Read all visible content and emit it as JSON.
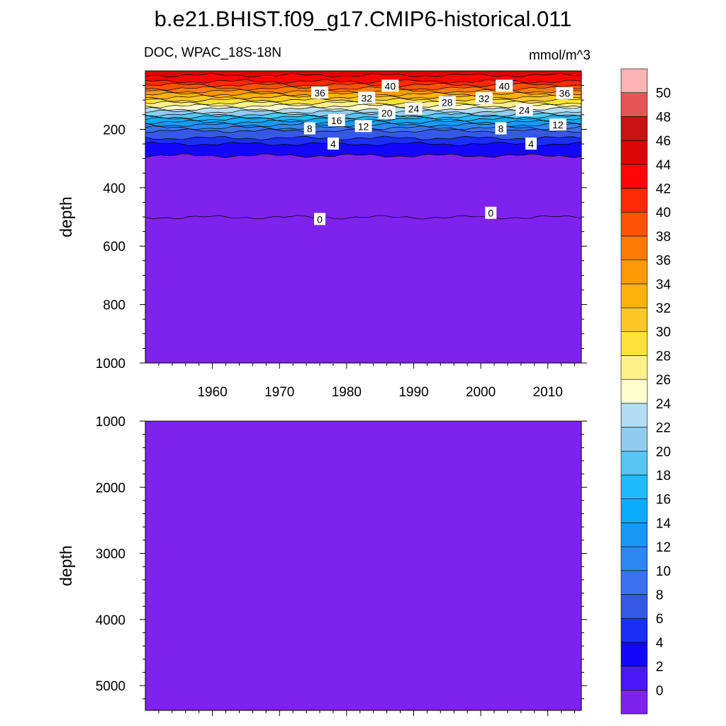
{
  "title": "b.e21.BHIST.f09_g17.CMIP6-historical.011",
  "chart_data": {
    "type": "heatmap",
    "variable": "DOC",
    "region": "WPAC_18S-18N",
    "units": "mmol/m^3",
    "left_label": "DOC, WPAC_18S-18N",
    "ylabel": "depth",
    "xlim": [
      1950,
      2015
    ],
    "x_ticks": [
      "1960",
      "1970",
      "1980",
      "1990",
      "2000",
      "2010"
    ],
    "panels": [
      {
        "name": "upper",
        "ylim": [
          0,
          1000
        ],
        "y_ticks": [
          "200",
          "400",
          "600",
          "800",
          "1000"
        ],
        "depth_profile": [
          {
            "depth": 0,
            "value": 45
          },
          {
            "depth": 30,
            "value": 43
          },
          {
            "depth": 60,
            "value": 38
          },
          {
            "depth": 90,
            "value": 32
          },
          {
            "depth": 110,
            "value": 28
          },
          {
            "depth": 130,
            "value": 24
          },
          {
            "depth": 150,
            "value": 20
          },
          {
            "depth": 165,
            "value": 16
          },
          {
            "depth": 185,
            "value": 12
          },
          {
            "depth": 205,
            "value": 8
          },
          {
            "depth": 230,
            "value": 6
          },
          {
            "depth": 250,
            "value": 4
          },
          {
            "depth": 290,
            "value": 2
          },
          {
            "depth": 500,
            "value": 0
          }
        ],
        "contour_labels": [
          {
            "text": "40",
            "x": 1986.5,
            "depth": 52
          },
          {
            "text": "40",
            "x": 2003.5,
            "depth": 52
          },
          {
            "text": "36",
            "x": 1976,
            "depth": 75
          },
          {
            "text": "36",
            "x": 2012.5,
            "depth": 77
          },
          {
            "text": "32",
            "x": 1983,
            "depth": 93
          },
          {
            "text": "32",
            "x": 2000.5,
            "depth": 95
          },
          {
            "text": "28",
            "x": 1995,
            "depth": 108
          },
          {
            "text": "24",
            "x": 1990,
            "depth": 130
          },
          {
            "text": "24",
            "x": 2006.5,
            "depth": 135
          },
          {
            "text": "20",
            "x": 1986,
            "depth": 145
          },
          {
            "text": "16",
            "x": 1978.5,
            "depth": 170
          },
          {
            "text": "12",
            "x": 1982.5,
            "depth": 190
          },
          {
            "text": "12",
            "x": 2011.5,
            "depth": 185
          },
          {
            "text": "8",
            "x": 1974.5,
            "depth": 198
          },
          {
            "text": "8",
            "x": 2003,
            "depth": 198
          },
          {
            "text": "4",
            "x": 1978,
            "depth": 250
          },
          {
            "text": "4",
            "x": 2007.5,
            "depth": 250
          },
          {
            "text": "0",
            "x": 1976,
            "depth": 508
          },
          {
            "text": "0",
            "x": 2001.5,
            "depth": 487
          }
        ]
      },
      {
        "name": "lower",
        "ylim": [
          1000,
          5375
        ],
        "y_ticks": [
          "1000",
          "2000",
          "3000",
          "4000",
          "5000"
        ],
        "value": 0
      }
    ],
    "colorbar": {
      "labels": [
        "0",
        "2",
        "4",
        "6",
        "8",
        "10",
        "12",
        "14",
        "16",
        "18",
        "20",
        "22",
        "24",
        "26",
        "28",
        "30",
        "32",
        "34",
        "36",
        "38",
        "40",
        "42",
        "44",
        "46",
        "48",
        "50"
      ],
      "colors": [
        "#7f22ee",
        "#4b18fa",
        "#1406fc",
        "#1a2ef5",
        "#3558e6",
        "#3a72ed",
        "#2e86f0",
        "#1b98f4",
        "#0bacfc",
        "#1fbcfc",
        "#5ac4f2",
        "#90ccee",
        "#b4dcf2",
        "#fefdce",
        "#fef18c",
        "#fee23c",
        "#fdc823",
        "#fdb30b",
        "#fd9a06",
        "#fd7b06",
        "#fd5304",
        "#fd2a04",
        "#fd0604",
        "#dc0404",
        "#c81212",
        "#e45656",
        "#fdb4b4"
      ]
    }
  }
}
